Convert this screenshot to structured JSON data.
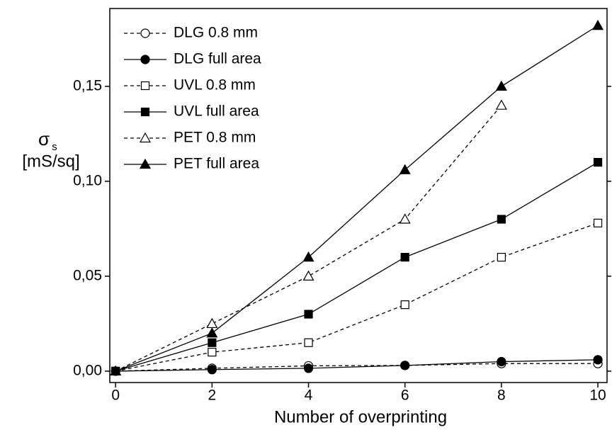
{
  "chart_data": {
    "type": "line",
    "xlabel": "Number of overprinting",
    "ylabel": {
      "symbol": "σ",
      "subscript": "s",
      "unit": "[mS/sq]"
    },
    "x": [
      0,
      2,
      4,
      6,
      8,
      10
    ],
    "series": [
      {
        "name": "DLG 0.8 mm",
        "color": "#000000",
        "marker": "circle",
        "filled": false,
        "dashed": true,
        "values": [
          0,
          0.0015,
          0.0028,
          0.003,
          0.004,
          0.004
        ]
      },
      {
        "name": "DLG full area",
        "color": "#000000",
        "marker": "circle",
        "filled": true,
        "dashed": false,
        "values": [
          0,
          0.0008,
          0.0015,
          0.003,
          0.005,
          0.006
        ]
      },
      {
        "name": "UVL 0.8 mm",
        "color": "#000000",
        "marker": "square",
        "filled": false,
        "dashed": true,
        "values": [
          0,
          0.01,
          0.015,
          0.035,
          0.06,
          0.078
        ]
      },
      {
        "name": "UVL full area",
        "color": "#000000",
        "marker": "square",
        "filled": true,
        "dashed": false,
        "values": [
          0,
          0.015,
          0.03,
          0.06,
          0.08,
          0.11
        ]
      },
      {
        "name": "PET 0.8 mm",
        "color": "#000000",
        "marker": "triangle",
        "filled": false,
        "dashed": true,
        "values": [
          0,
          0.025,
          0.05,
          0.08,
          0.14,
          null
        ]
      },
      {
        "name": "PET full area",
        "color": "#000000",
        "marker": "triangle",
        "filled": true,
        "dashed": false,
        "values": [
          0,
          0.02,
          0.06,
          0.106,
          0.15,
          0.182
        ]
      }
    ],
    "xlim": [
      -0.12,
      10.19
    ],
    "xticks": [
      0,
      2,
      4,
      6,
      8,
      10
    ],
    "ylim": [
      -0.006,
      0.191
    ],
    "yticks": [
      {
        "value": 0,
        "label": "0,00"
      },
      {
        "value": 0.05,
        "label": "0,05"
      },
      {
        "value": 0.1,
        "label": "0,10"
      },
      {
        "value": 0.15,
        "label": "0,15"
      }
    ],
    "legend": "upper-left"
  }
}
